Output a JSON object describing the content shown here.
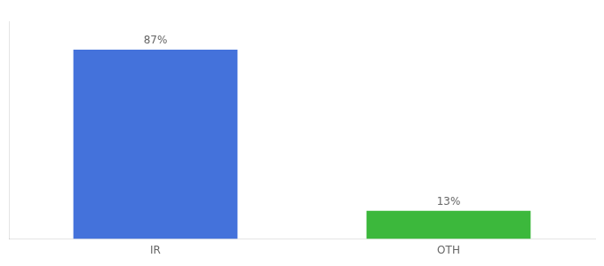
{
  "chart_data": {
    "type": "bar",
    "categories": [
      "IR",
      "OTH"
    ],
    "values": [
      87,
      13
    ],
    "colors": [
      "#4472db",
      "#3cb83c"
    ],
    "value_labels": [
      "87%",
      "13%"
    ],
    "data_labels": true,
    "ylim": [
      0,
      100
    ],
    "grid": false,
    "tick_labels": "x"
  }
}
